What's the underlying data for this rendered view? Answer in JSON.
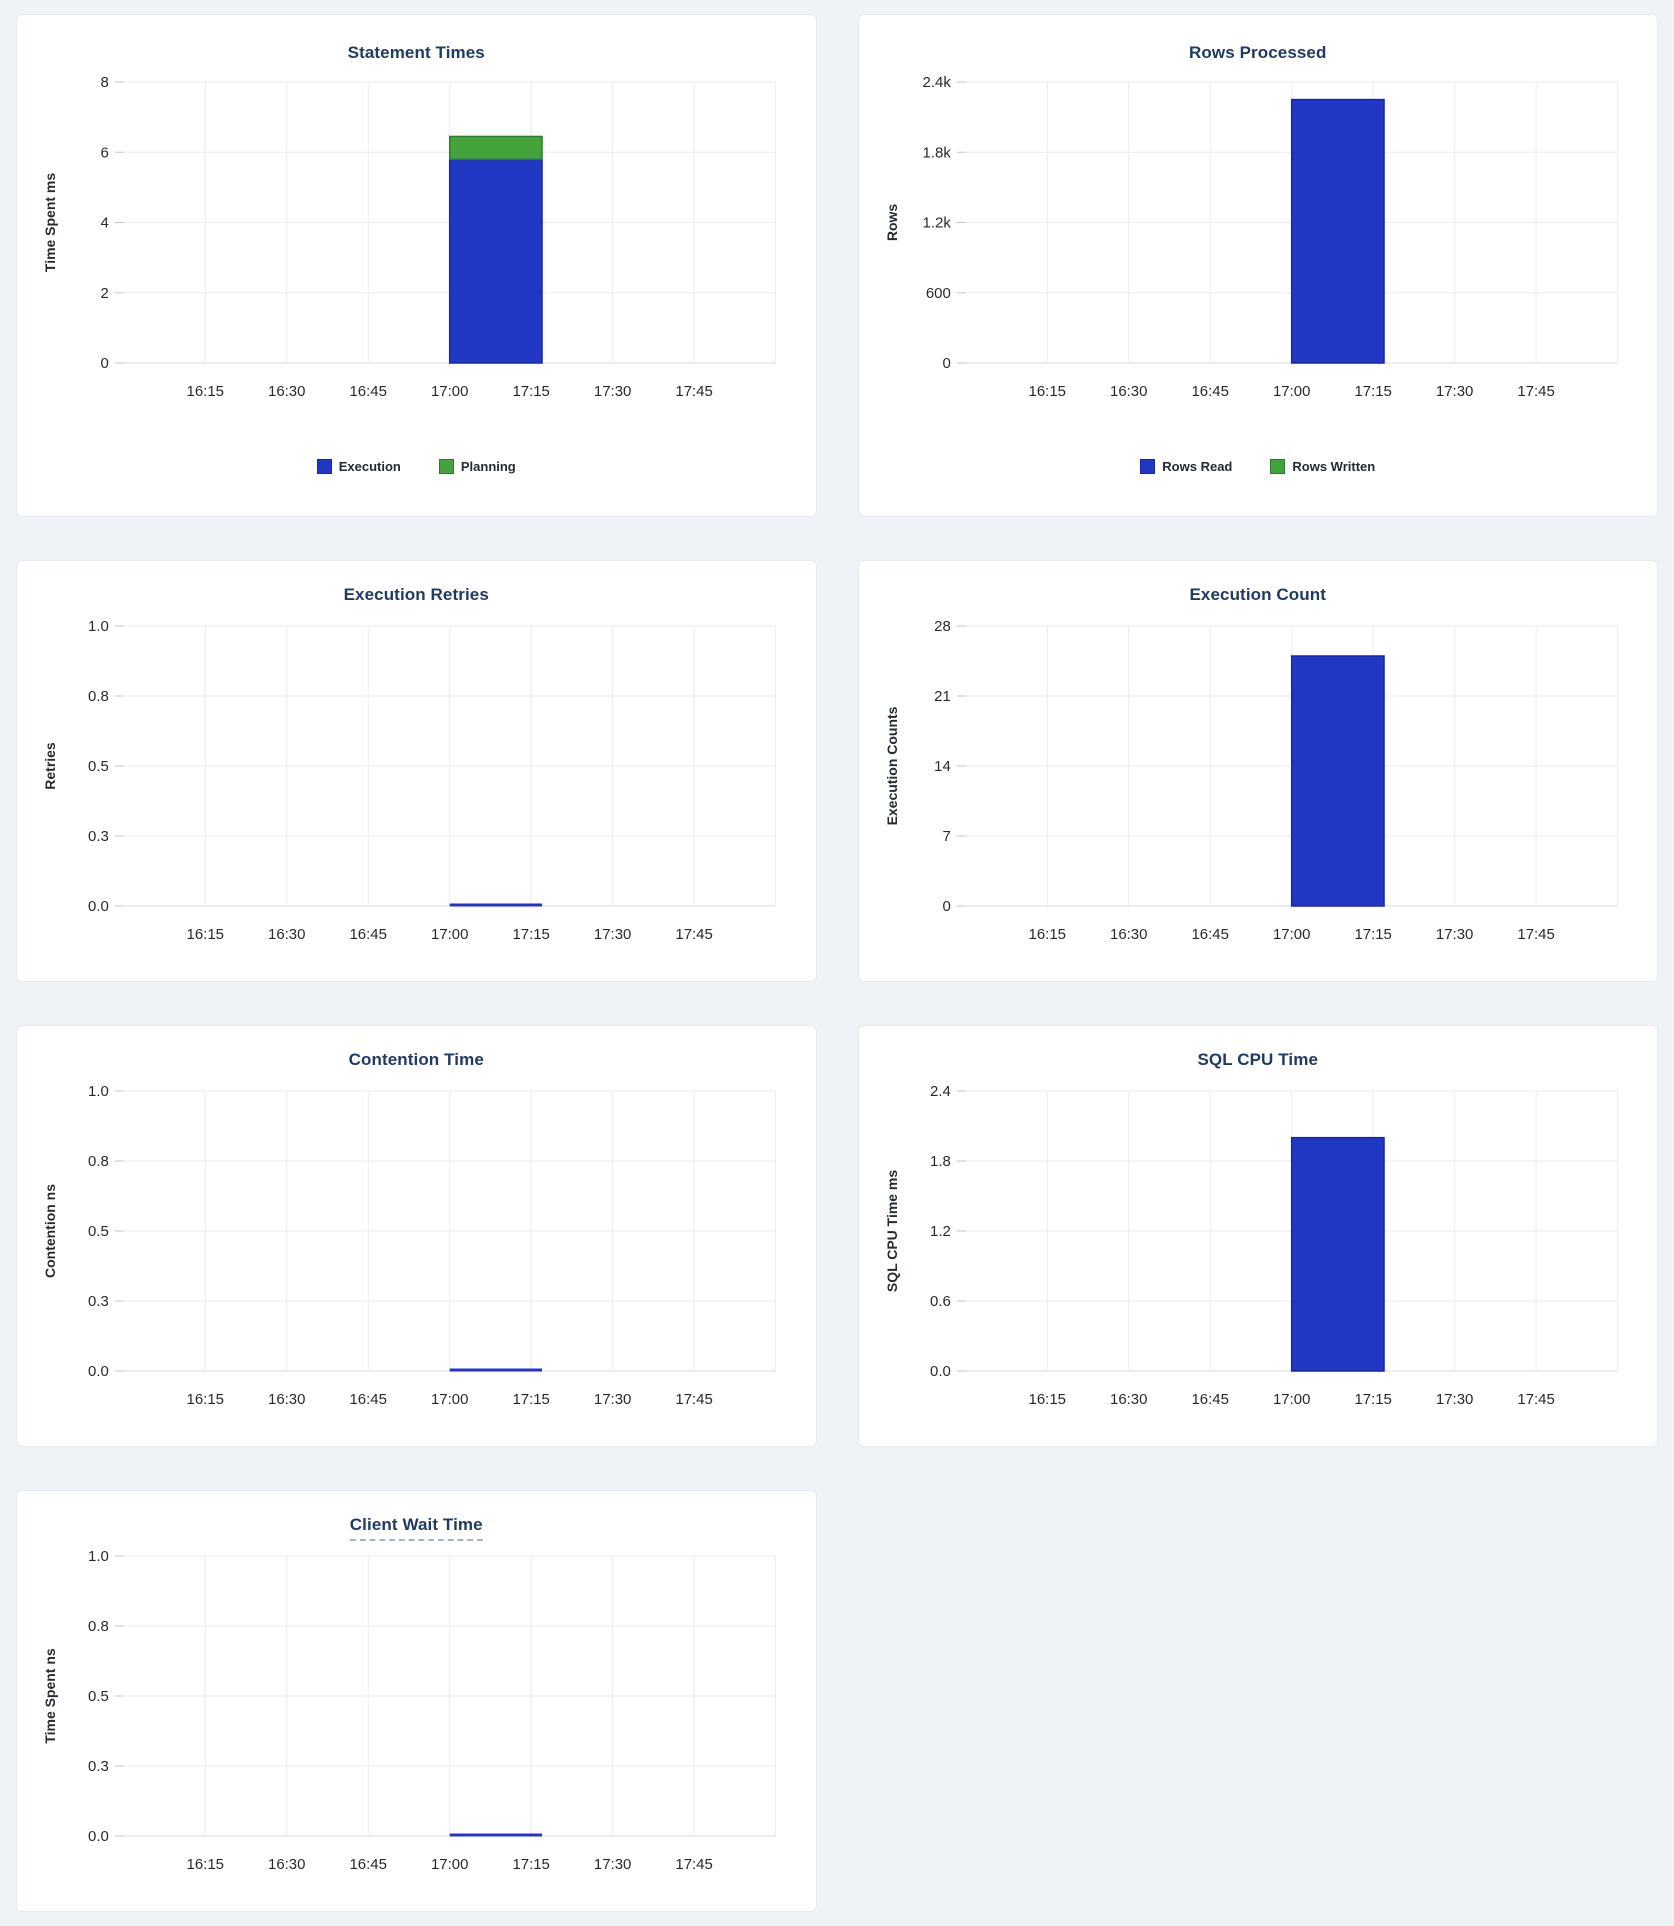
{
  "colors": {
    "page_bg": "#eff3f7",
    "card_bg": "#ffffff",
    "card_border": "#e6ebf1",
    "title_text": "#1f3b63",
    "title_underline": "#a5b4cd",
    "tick_text": "#242a30",
    "grid_line": "#e9ebed",
    "grid_line_vertical": "#ececef",
    "axis_line": "#d8dbdf",
    "axis_stub": "#c2c7cd",
    "bar_blue": "#2138c4",
    "bar_blue_border": "#1726ad",
    "bar_green": "#45a33c",
    "bar_green_border": "#2e7d2c",
    "zero_line": "#2232d6"
  },
  "x_axis": {
    "tick_minutes": [
      15,
      30,
      45,
      60,
      75,
      90,
      105
    ],
    "domain_minutes": [
      0,
      120
    ],
    "domain_time_range": [
      "16:00",
      "18:00"
    ]
  },
  "chart_data": [
    {
      "type": "bar",
      "title": "Statement Times",
      "title_tooltip_underline": false,
      "ylabel": "Time Spent ms",
      "ymax_value": 8,
      "ylim": [
        0,
        8
      ],
      "ytick_labels": [
        "0",
        "2",
        "4",
        "6",
        "8"
      ],
      "xtick_labels": [
        "16:15",
        "16:30",
        "16:45",
        "17:00",
        "17:15",
        "17:30",
        "17:45"
      ],
      "grid": true,
      "legend_position": "bottom",
      "bar_interval": {
        "start": "17:00",
        "end": "17:17",
        "start_minute": 60,
        "end_minute": 77
      },
      "series": [
        {
          "name": "Execution",
          "color": "bar_blue",
          "value": 5.8
        },
        {
          "name": "Planning",
          "color": "bar_green",
          "value": 0.65
        }
      ],
      "legend": [
        {
          "label": "Execution",
          "color": "bar_blue"
        },
        {
          "label": "Planning",
          "color": "bar_green"
        }
      ]
    },
    {
      "type": "bar",
      "title": "Rows Processed",
      "title_tooltip_underline": false,
      "ylabel": "Rows",
      "ymax_value": 2400,
      "ylim": [
        0,
        2400
      ],
      "ytick_labels": [
        "0",
        "600",
        "1.2k",
        "1.8k",
        "2.4k"
      ],
      "xtick_labels": [
        "16:15",
        "16:30",
        "16:45",
        "17:00",
        "17:15",
        "17:30",
        "17:45"
      ],
      "grid": true,
      "legend_position": "bottom",
      "bar_interval": {
        "start": "17:00",
        "end": "17:17",
        "start_minute": 60,
        "end_minute": 77
      },
      "series": [
        {
          "name": "Rows Read",
          "color": "bar_blue",
          "value": 2250
        },
        {
          "name": "Rows Written",
          "color": "bar_green",
          "value": 0
        }
      ],
      "legend": [
        {
          "label": "Rows Read",
          "color": "bar_blue"
        },
        {
          "label": "Rows Written",
          "color": "bar_green"
        }
      ]
    },
    {
      "type": "bar",
      "title": "Execution Retries",
      "title_tooltip_underline": false,
      "ylabel": "Retries",
      "ymax_value": 1,
      "ylim": [
        0,
        1
      ],
      "ytick_labels": [
        "0.0",
        "0.3",
        "0.5",
        "0.8",
        "1.0"
      ],
      "xtick_labels": [
        "16:15",
        "16:30",
        "16:45",
        "17:00",
        "17:15",
        "17:30",
        "17:45"
      ],
      "grid": true,
      "legend_position": "none",
      "bar_interval": {
        "start": "17:00",
        "end": "17:17",
        "start_minute": 60,
        "end_minute": 77
      },
      "series": [
        {
          "name": "Retries",
          "color": "bar_blue",
          "value": 0
        }
      ],
      "legend": []
    },
    {
      "type": "bar",
      "title": "Execution Count",
      "title_tooltip_underline": false,
      "ylabel": "Execution Counts",
      "ymax_value": 28,
      "ylim": [
        0,
        28
      ],
      "ytick_labels": [
        "0",
        "7",
        "14",
        "21",
        "28"
      ],
      "xtick_labels": [
        "16:15",
        "16:30",
        "16:45",
        "17:00",
        "17:15",
        "17:30",
        "17:45"
      ],
      "grid": true,
      "legend_position": "none",
      "bar_interval": {
        "start": "17:00",
        "end": "17:17",
        "start_minute": 60,
        "end_minute": 77
      },
      "series": [
        {
          "name": "Execution Count",
          "color": "bar_blue",
          "value": 25
        }
      ],
      "legend": []
    },
    {
      "type": "bar",
      "title": "Contention Time",
      "title_tooltip_underline": false,
      "ylabel": "Contention ns",
      "ymax_value": 1,
      "ylim": [
        0,
        1
      ],
      "ytick_labels": [
        "0.0",
        "0.3",
        "0.5",
        "0.8",
        "1.0"
      ],
      "xtick_labels": [
        "16:15",
        "16:30",
        "16:45",
        "17:00",
        "17:15",
        "17:30",
        "17:45"
      ],
      "grid": true,
      "legend_position": "none",
      "bar_interval": {
        "start": "17:00",
        "end": "17:17",
        "start_minute": 60,
        "end_minute": 77
      },
      "series": [
        {
          "name": "Contention",
          "color": "bar_blue",
          "value": 0
        }
      ],
      "legend": []
    },
    {
      "type": "bar",
      "title": "SQL CPU Time",
      "title_tooltip_underline": false,
      "ylabel": "SQL CPU Time ms",
      "ymax_value": 2.4,
      "ylim": [
        0,
        2.4
      ],
      "ytick_labels": [
        "0.0",
        "0.6",
        "1.2",
        "1.8",
        "2.4"
      ],
      "xtick_labels": [
        "16:15",
        "16:30",
        "16:45",
        "17:00",
        "17:15",
        "17:30",
        "17:45"
      ],
      "grid": true,
      "legend_position": "none",
      "bar_interval": {
        "start": "17:00",
        "end": "17:17",
        "start_minute": 60,
        "end_minute": 77
      },
      "series": [
        {
          "name": "SQL CPU Time",
          "color": "bar_blue",
          "value": 2.0
        }
      ],
      "legend": []
    },
    {
      "type": "bar",
      "title": "Client Wait Time",
      "title_tooltip_underline": true,
      "ylabel": "Time Spent ns",
      "ymax_value": 1,
      "ylim": [
        0,
        1
      ],
      "ytick_labels": [
        "0.0",
        "0.3",
        "0.5",
        "0.8",
        "1.0"
      ],
      "xtick_labels": [
        "16:15",
        "16:30",
        "16:45",
        "17:00",
        "17:15",
        "17:30",
        "17:45"
      ],
      "grid": true,
      "legend_position": "none",
      "bar_interval": {
        "start": "17:00",
        "end": "17:17",
        "start_minute": 60,
        "end_minute": 77
      },
      "series": [
        {
          "name": "Client Wait",
          "color": "bar_blue",
          "value": 0
        }
      ],
      "legend": []
    }
  ]
}
